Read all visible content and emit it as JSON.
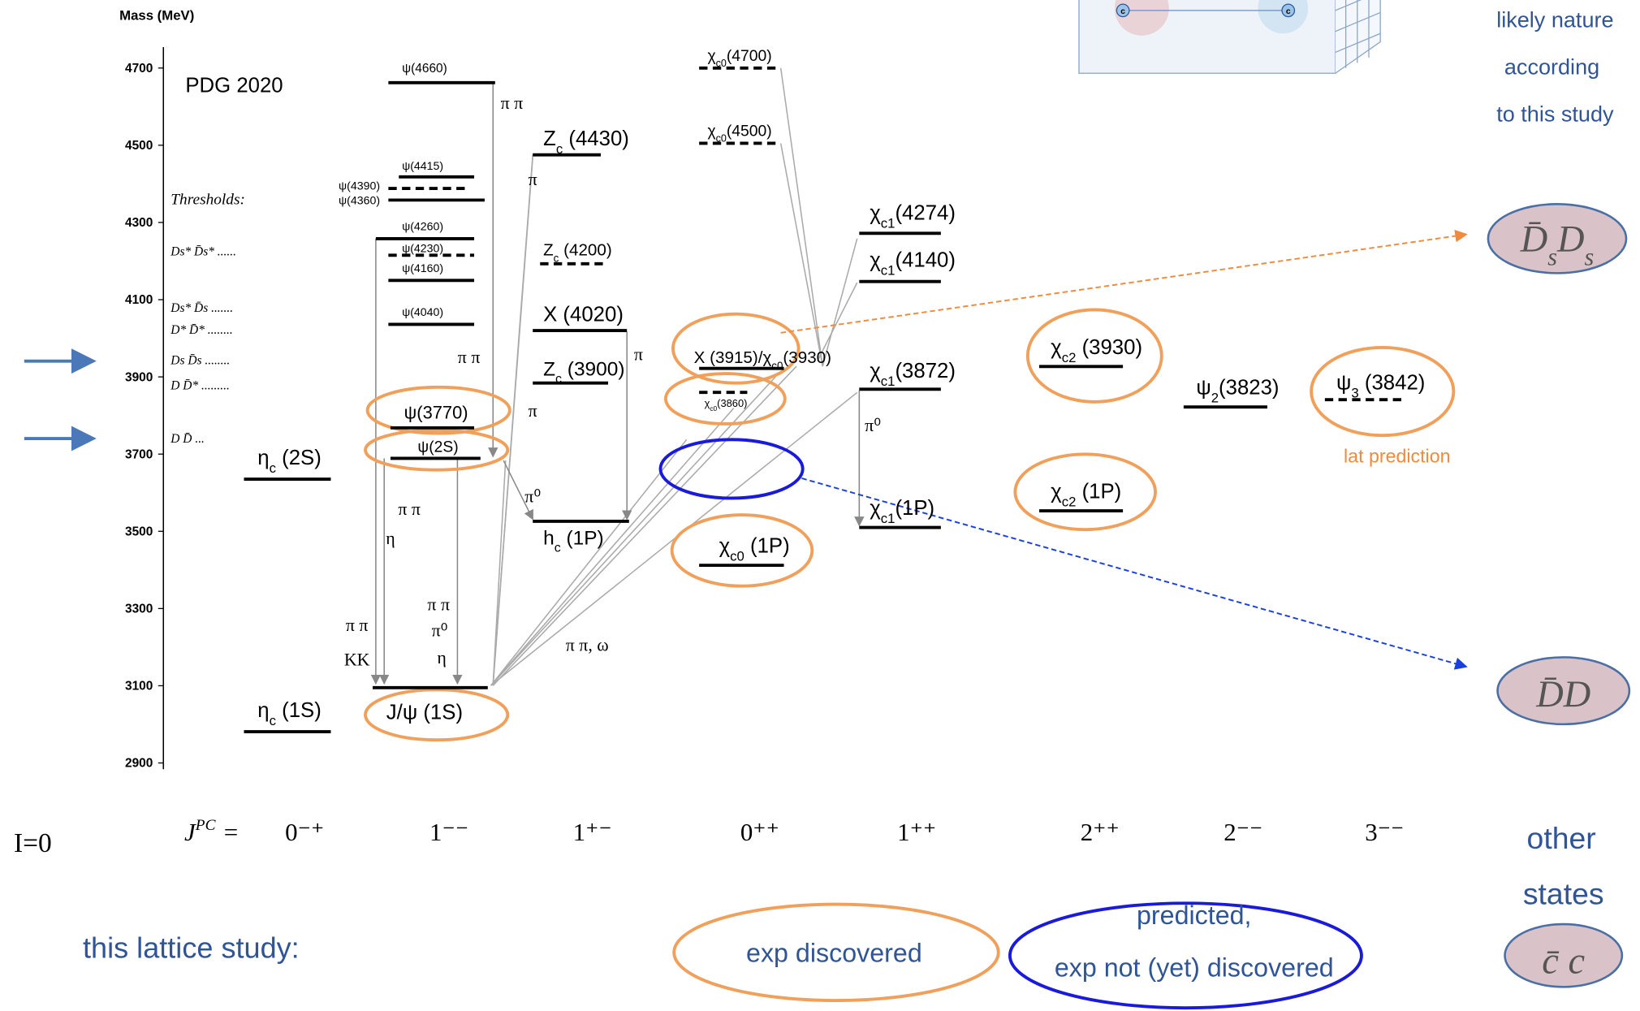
{
  "header": {
    "axis_label": "Mass (MeV)",
    "source": "PDG 2020",
    "isospin": "I=0"
  },
  "axis": {
    "ticks": [
      2900,
      3100,
      3300,
      3500,
      3700,
      3900,
      4100,
      4300,
      4500,
      4700
    ],
    "ylim": [
      2900,
      4700
    ]
  },
  "thresholds": {
    "title": "Thresholds:",
    "items": [
      "Ds* D̄s* ......",
      "Ds* D̄s .......",
      "D* D̄* ........",
      "Ds D̄s ........",
      "D D̄* .........",
      "D D̄  ..."
    ]
  },
  "jpc": {
    "symbol": "J",
    "superscript": "PC",
    "equals": "=",
    "columns": [
      "0⁻⁺",
      "1⁻⁻",
      "1⁺⁻",
      "0⁺⁺",
      "1⁺⁺",
      "2⁺⁺",
      "2⁻⁻",
      "3⁻⁻"
    ]
  },
  "levels": [
    {
      "mass": 2981,
      "dashed": false,
      "parts": [
        {
          "text": "η"
        },
        {
          "text": "c",
          "sub": true
        },
        {
          "text": " (1S)"
        }
      ]
    },
    {
      "mass": 3635,
      "dashed": false,
      "parts": [
        {
          "text": "η"
        },
        {
          "text": "c",
          "sub": true
        },
        {
          "text": " (2S)"
        }
      ]
    },
    {
      "mass": 3095,
      "dashed": false,
      "parts": [
        {
          "text": "J/ψ  (1S)"
        }
      ]
    },
    {
      "mass": 3689,
      "dashed": false,
      "parts": [
        {
          "text": "ψ(2S)"
        }
      ]
    },
    {
      "mass": 3768,
      "dashed": false,
      "parts": [
        {
          "text": "ψ(3770)"
        }
      ]
    },
    {
      "mass": 4036,
      "dashed": false,
      "parts": [
        {
          "text": "ψ(4040)"
        }
      ]
    },
    {
      "mass": 4150,
      "dashed": false,
      "parts": [
        {
          "text": "ψ(4160)"
        }
      ]
    },
    {
      "mass": 4215,
      "dashed": true,
      "parts": [
        {
          "text": "ψ(4230)"
        }
      ]
    },
    {
      "mass": 4258,
      "dashed": false,
      "parts": [
        {
          "text": "ψ(4260)"
        }
      ]
    },
    {
      "mass": 4358,
      "dashed": false,
      "parts": [
        {
          "text": "ψ(4360)"
        }
      ]
    },
    {
      "mass": 4388,
      "dashed": true,
      "parts": [
        {
          "text": "ψ(4390)"
        }
      ]
    },
    {
      "mass": 4418,
      "dashed": false,
      "parts": [
        {
          "text": "ψ(4415)"
        }
      ]
    },
    {
      "mass": 4662,
      "dashed": false,
      "parts": [
        {
          "text": "ψ(4660)"
        }
      ]
    },
    {
      "mass": 3526,
      "dashed": false,
      "parts": [
        {
          "text": "h"
        },
        {
          "text": "c",
          "sub": true
        },
        {
          "text": "  (1P)"
        }
      ]
    },
    {
      "mass": 3884,
      "dashed": false,
      "parts": [
        {
          "text": "Z"
        },
        {
          "text": "c",
          "sub": true
        },
        {
          "text": " (3900)"
        }
      ]
    },
    {
      "mass": 4020,
      "dashed": false,
      "parts": [
        {
          "text": "X  (4020)"
        }
      ]
    },
    {
      "mass": 4193,
      "dashed": true,
      "parts": [
        {
          "text": "Z"
        },
        {
          "text": "c",
          "sub": true
        },
        {
          "text": " (4200)"
        }
      ]
    },
    {
      "mass": 4475,
      "dashed": false,
      "parts": [
        {
          "text": "Z"
        },
        {
          "text": "c",
          "sub": true
        },
        {
          "text": " (4430)"
        }
      ]
    },
    {
      "mass": 3412,
      "dashed": false,
      "parts": [
        {
          "text": "χ"
        },
        {
          "text": "c0",
          "sub": true
        },
        {
          "text": "  (1P)"
        }
      ]
    },
    {
      "mass": 3860,
      "dashed": true,
      "parts": [
        {
          "text": "χ"
        },
        {
          "text": "c0",
          "sub": true
        },
        {
          "text": "(3860)"
        }
      ]
    },
    {
      "mass": 3922,
      "dashed": false,
      "parts": [
        {
          "text": "X (3915)/χ"
        },
        {
          "text": "c0",
          "sub": true
        },
        {
          "text": "(3930)"
        }
      ]
    },
    {
      "mass": 4505,
      "dashed": true,
      "parts": [
        {
          "text": "χ"
        },
        {
          "text": "c0",
          "sub": true
        },
        {
          "text": "(4500)"
        }
      ]
    },
    {
      "mass": 4700,
      "dashed": true,
      "parts": [
        {
          "text": "χ"
        },
        {
          "text": "c0",
          "sub": true
        },
        {
          "text": "(4700)"
        }
      ]
    },
    {
      "mass": 3510,
      "dashed": false,
      "parts": [
        {
          "text": "χ"
        },
        {
          "text": "c1",
          "sub": true
        },
        {
          "text": "(1P)"
        }
      ]
    },
    {
      "mass": 3868,
      "dashed": false,
      "parts": [
        {
          "text": "χ"
        },
        {
          "text": "c1",
          "sub": true
        },
        {
          "text": "(3872)"
        }
      ]
    },
    {
      "mass": 4147,
      "dashed": false,
      "parts": [
        {
          "text": "χ"
        },
        {
          "text": "c1",
          "sub": true
        },
        {
          "text": "(4140)"
        }
      ]
    },
    {
      "mass": 4272,
      "dashed": false,
      "parts": [
        {
          "text": "χ"
        },
        {
          "text": "c1",
          "sub": true
        },
        {
          "text": "(4274)"
        }
      ]
    },
    {
      "mass": 3553,
      "dashed": false,
      "parts": [
        {
          "text": "χ"
        },
        {
          "text": "c2",
          "sub": true
        },
        {
          "text": " (1P)"
        }
      ]
    },
    {
      "mass": 3927,
      "dashed": false,
      "parts": [
        {
          "text": "χ"
        },
        {
          "text": "c2",
          "sub": true
        },
        {
          "text": " (3930)"
        }
      ]
    },
    {
      "mass": 3822,
      "dashed": false,
      "parts": [
        {
          "text": "ψ"
        },
        {
          "text": "2",
          "sub": true
        },
        {
          "text": "(3823)"
        }
      ]
    },
    {
      "mass": 3841,
      "dashed": true,
      "parts": [
        {
          "text": "ψ"
        },
        {
          "text": "3",
          "sub": true
        },
        {
          "text": " (3842)"
        }
      ]
    }
  ],
  "transitions": [
    "π π",
    "π",
    "π π",
    "π",
    "π",
    "π⁰",
    "π π",
    "η",
    "π π",
    "KK",
    "π π",
    "π⁰",
    "η",
    "π π, ω",
    "π⁰"
  ],
  "legend": {
    "title": "this lattice study:",
    "discovered": "exp discovered",
    "predicted": [
      "predicted,",
      "exp not (yet) discovered"
    ],
    "lat_prediction": "lat prediction"
  },
  "right": {
    "caption": [
      "likely nature",
      "according",
      "to this study"
    ],
    "other": [
      "other",
      "states"
    ],
    "quark": "c",
    "states": [
      {
        "parts": [
          {
            "text": "D̄"
          },
          {
            "text": "s",
            "sub": true
          },
          {
            "text": "D"
          },
          {
            "text": "s",
            "sub": true
          }
        ]
      },
      {
        "parts": [
          {
            "text": "D̄D"
          }
        ]
      },
      {
        "parts": [
          {
            "text": "c̄  c"
          }
        ]
      }
    ]
  }
}
